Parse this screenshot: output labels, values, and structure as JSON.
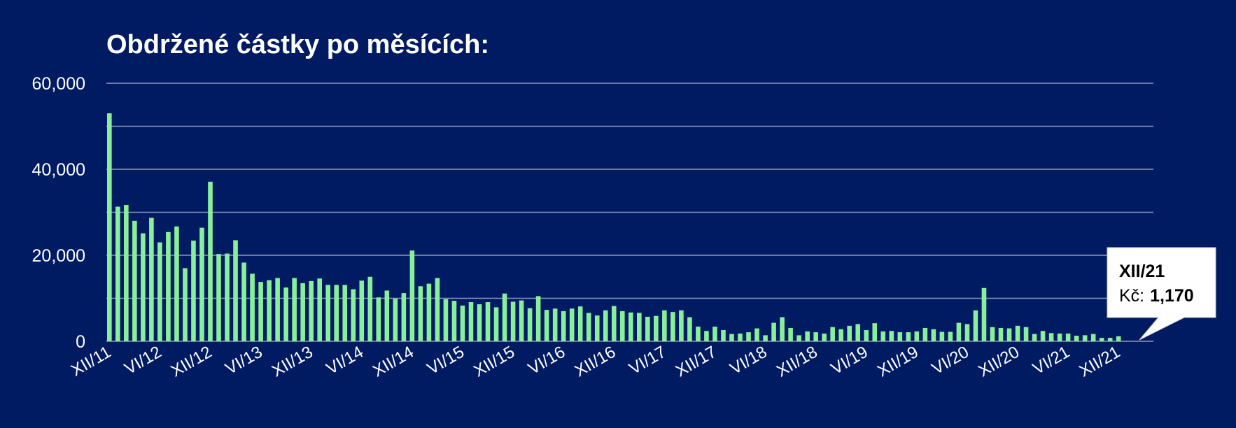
{
  "chart_data": {
    "type": "bar",
    "title": "Obdržené částky po měsících:",
    "xlabel": "",
    "ylabel": "",
    "ylim": [
      0,
      60000
    ],
    "yticks": [
      0,
      20000,
      40000,
      60000
    ],
    "ytick_labels": [
      "0",
      "20,000",
      "40,000",
      "60,000"
    ],
    "grid": true,
    "x_tick_labels": [
      "XII/11",
      "VI/12",
      "XII/12",
      "VI/13",
      "XII/13",
      "VI/14",
      "XII/14",
      "VI/15",
      "XII/15",
      "VI/16",
      "XII/16",
      "VI/17",
      "XII/17",
      "VI/18",
      "XII/18",
      "VI/19",
      "XII/19",
      "VI/20",
      "XII/20",
      "VI/21",
      "XII/21"
    ],
    "values": [
      53000,
      31300,
      31700,
      28000,
      25100,
      28700,
      23000,
      25400,
      26700,
      17000,
      23400,
      26400,
      37100,
      20300,
      20400,
      23500,
      18300,
      15700,
      13800,
      14200,
      14700,
      12500,
      14700,
      13500,
      14000,
      14600,
      13100,
      13100,
      13100,
      12100,
      14100,
      15000,
      10200,
      11800,
      9900,
      11200,
      21100,
      12800,
      13400,
      14700,
      9800,
      9400,
      8300,
      9100,
      8600,
      9100,
      7900,
      11100,
      9200,
      9500,
      7700,
      10500,
      7300,
      7600,
      7000,
      7600,
      8100,
      6600,
      6000,
      7200,
      8200,
      7000,
      6700,
      6600,
      5700,
      5900,
      7200,
      6800,
      7200,
      5600,
      3400,
      2400,
      3400,
      2600,
      1700,
      1800,
      2100,
      3000,
      1400,
      4300,
      5600,
      3100,
      1400,
      2300,
      2100,
      1800,
      3300,
      2800,
      3600,
      4000,
      2600,
      4200,
      2300,
      2400,
      2100,
      2100,
      2300,
      3100,
      2800,
      2200,
      2200,
      4300,
      4000,
      7200,
      12400,
      3300,
      3100,
      3000,
      3600,
      3300,
      1700,
      2400,
      1900,
      1800,
      1800,
      1300,
      1400,
      1700,
      800,
      800,
      1170
    ],
    "tooltip": {
      "category": "XII/21",
      "label": "Kč:",
      "value": "1,170"
    },
    "colors": {
      "background": "#011b63",
      "bar": "#88f09a",
      "grid": "#8f98b8",
      "text": "#ffffff"
    }
  }
}
